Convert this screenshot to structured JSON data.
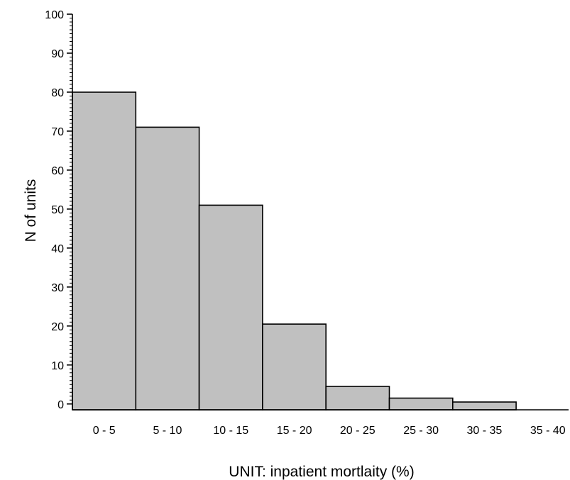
{
  "chart_data": {
    "type": "bar",
    "title": "",
    "xlabel": "UNIT: inpatient mortlaity (%)",
    "ylabel": "N of units",
    "categories": [
      "0 - 5",
      "5 - 10",
      "10 - 15",
      "15 - 20",
      "20 - 25",
      "25 - 30",
      "30 - 35",
      "35 - 40"
    ],
    "values": [
      80,
      71,
      51,
      20.5,
      4.5,
      1.5,
      0.5,
      0
    ],
    "ylim": [
      -1.5,
      100
    ],
    "yticks": [
      0,
      10,
      20,
      30,
      40,
      50,
      60,
      70,
      80,
      90,
      100
    ],
    "grid": false,
    "legend": "none",
    "colors": {
      "bar_fill": "#c0c0c0",
      "bar_stroke": "#000000",
      "axis": "#000000",
      "text": "#000000"
    }
  }
}
